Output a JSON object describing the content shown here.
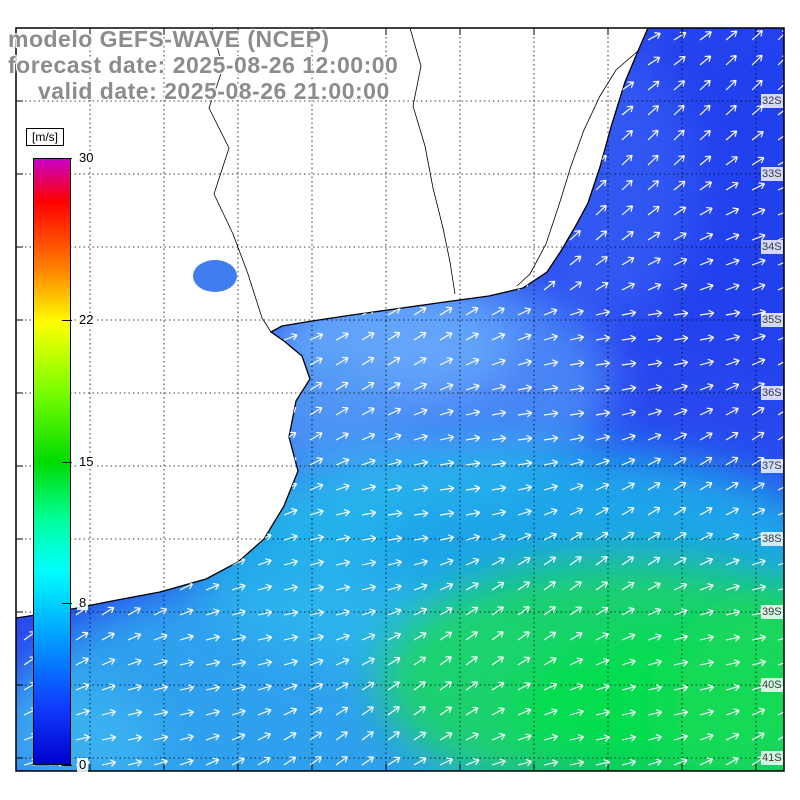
{
  "header": {
    "line1": "modelo GEFS-WAVE (NCEP)",
    "line2": "forecast date: 2025-08-26 12:00:00",
    "line3": "valid date: 2025-08-26 21:00:00",
    "text_color": "#8c8c8c"
  },
  "colorbar": {
    "unit": "[m/s]",
    "max": 30,
    "tick_values": [
      30,
      22,
      15,
      8,
      0
    ],
    "gradient": [
      {
        "c": "#c800c8",
        "p": 0
      },
      {
        "c": "#ff0000",
        "p": 7
      },
      {
        "c": "#ff7f00",
        "p": 18
      },
      {
        "c": "#ffff00",
        "p": 27
      },
      {
        "c": "#7fff00",
        "p": 38
      },
      {
        "c": "#00dc00",
        "p": 50
      },
      {
        "c": "#00ff9f",
        "p": 60
      },
      {
        "c": "#00ffff",
        "p": 68
      },
      {
        "c": "#00a8ff",
        "p": 78
      },
      {
        "c": "#1040ff",
        "p": 90
      },
      {
        "c": "#0000cd",
        "p": 100
      }
    ]
  },
  "map": {
    "lat_labels": [
      "32S",
      "33S",
      "34S",
      "35S",
      "36S",
      "37S",
      "38S",
      "39S",
      "40S",
      "41S"
    ],
    "arrow_color": "#ffffff",
    "colors": {
      "base_blue": "#2948ef",
      "estuary": "#4f93f7",
      "estuary_core": "#6fb4fc",
      "coastal": "#4e9af5",
      "cyan_band": "#19c3e8",
      "bottom_cyan": "#2fb6ee",
      "green": "#17d957",
      "green_core": "#00e04a",
      "deep_blue": "#1e3cec",
      "topcoast_blue": "#3a66f5",
      "left_cyan": "#3fb8f2",
      "lagoon": "#3f7df0",
      "coastline": "#000000"
    }
  }
}
